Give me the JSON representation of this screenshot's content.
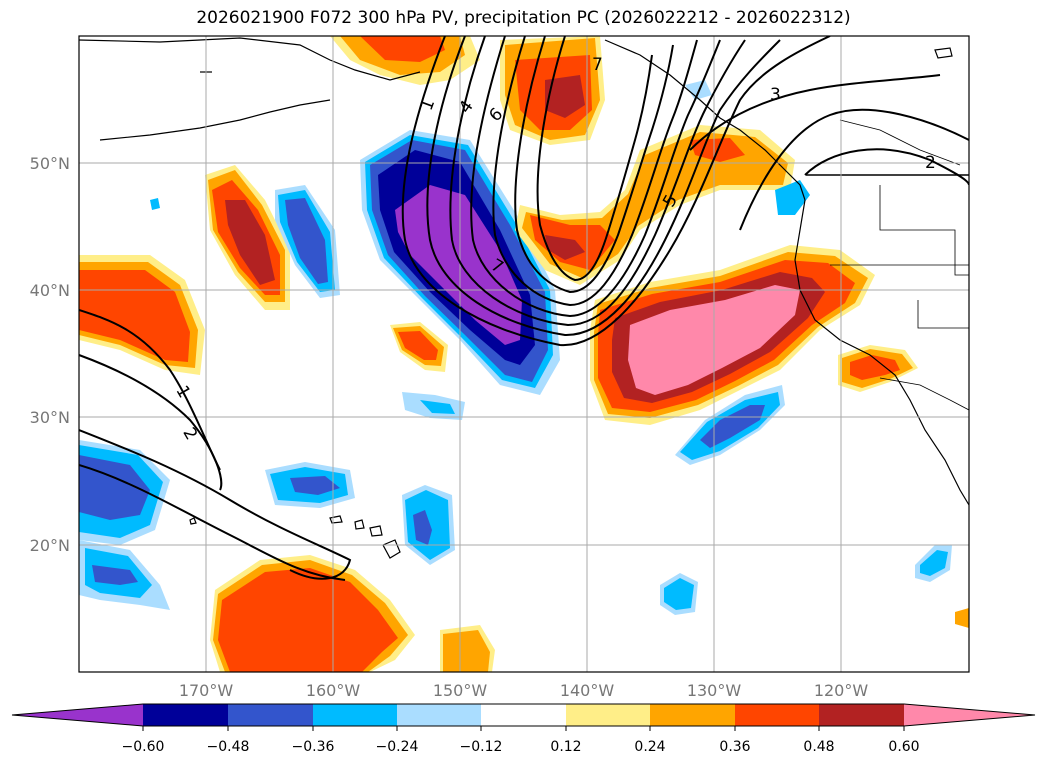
{
  "title": "2026021900 F072 300 hPa PV, precipitation PC (2026022212 - 2026022312)",
  "map": {
    "lat_labels": [
      "50°N",
      "40°N",
      "30°N",
      "20°N"
    ],
    "lon_labels": [
      "170°W",
      "160°W",
      "150°W",
      "140°W",
      "130°W",
      "120°W"
    ],
    "contour_labels": [
      "1",
      "4",
      "6",
      "7",
      "7",
      "5",
      "3",
      "2",
      "1",
      "2"
    ],
    "grid": true
  },
  "colorbar": {
    "ticks": [
      "−0.60",
      "−0.48",
      "−0.36",
      "−0.24",
      "−0.12",
      "0.12",
      "0.24",
      "0.36",
      "0.48",
      "0.60"
    ],
    "colors": {
      "neg_extreme": "#9933cc",
      "neg_060": "#000099",
      "neg_048": "#3355cc",
      "neg_036": "#00bbff",
      "neg_024": "#aaddff",
      "neutral": "#ffffff",
      "pos_012": "#ffee88",
      "pos_024": "#ffa500",
      "pos_036": "#ff4500",
      "pos_048": "#b22222",
      "pos_extreme": "#ff88aa"
    }
  }
}
